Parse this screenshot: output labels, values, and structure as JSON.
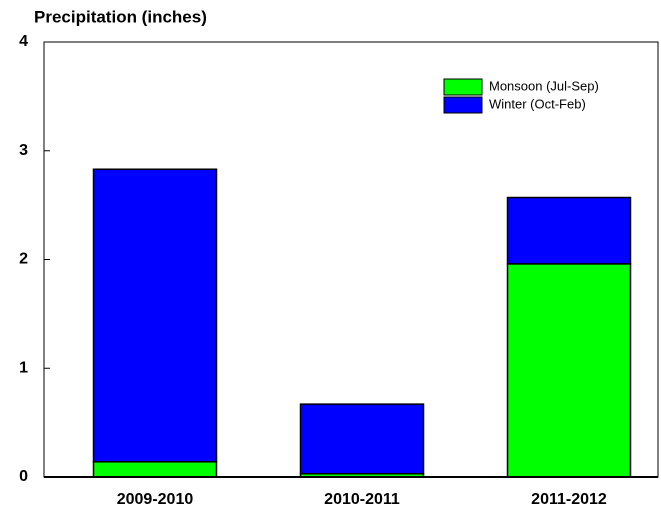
{
  "chart_data": {
    "type": "stacked_bar",
    "title": "Precipitation (inches)",
    "categories": [
      "2009-2010",
      "2010-2011",
      "2011-2012"
    ],
    "series": [
      {
        "name": "Monsoon (Jul-Sep)",
        "color": "#00ff00",
        "values": [
          0.14,
          0.03,
          1.96
        ]
      },
      {
        "name": "Winter (Oct-Feb)",
        "color": "#0000ff",
        "values": [
          2.69,
          0.64,
          0.61
        ]
      }
    ],
    "ylim": [
      0,
      4
    ],
    "yticks": [
      0,
      1,
      2,
      3,
      4
    ],
    "legend": "upper right"
  }
}
